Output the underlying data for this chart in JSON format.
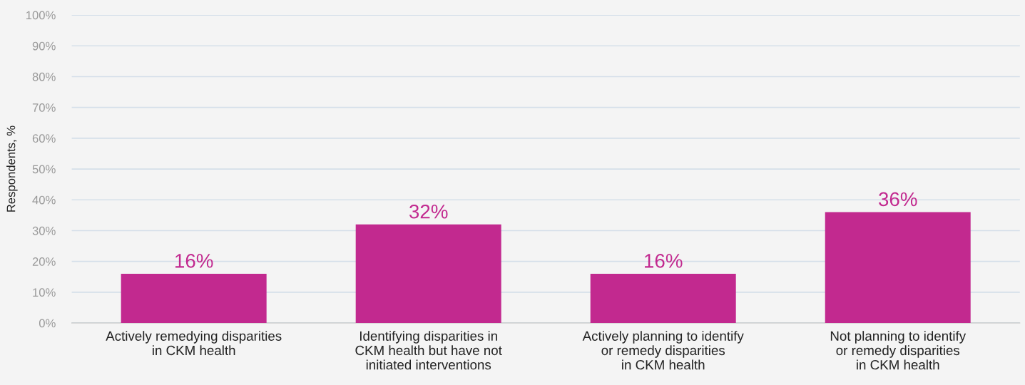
{
  "chart_data": {
    "type": "bar",
    "ylabel": "Respondents, %",
    "categories": [
      "Actively remedying disparities\nin CKM health",
      "Identifying disparities in\nCKM health but have not\ninitiated interventions",
      "Actively planning to identify\nor remedy disparities\nin CKM health",
      "Not planning to identify\nor remedy disparities\nin CKM health"
    ],
    "values": [
      16,
      32,
      16,
      36
    ],
    "value_labels": [
      "16%",
      "32%",
      "16%",
      "36%"
    ],
    "color": "#c2298f",
    "ylim": [
      0,
      100
    ],
    "yticks": [
      {
        "value": 0,
        "label": "0%"
      },
      {
        "value": 10,
        "label": "10%"
      },
      {
        "value": 20,
        "label": "20%"
      },
      {
        "value": 30,
        "label": "30%"
      },
      {
        "value": 40,
        "label": "40%"
      },
      {
        "value": 50,
        "label": "50%"
      },
      {
        "value": 60,
        "label": "60%"
      },
      {
        "value": 70,
        "label": "70%"
      },
      {
        "value": 80,
        "label": "80%"
      },
      {
        "value": 90,
        "label": "90%"
      },
      {
        "value": 100,
        "label": "100%"
      }
    ],
    "grid": "y",
    "legend": false
  }
}
